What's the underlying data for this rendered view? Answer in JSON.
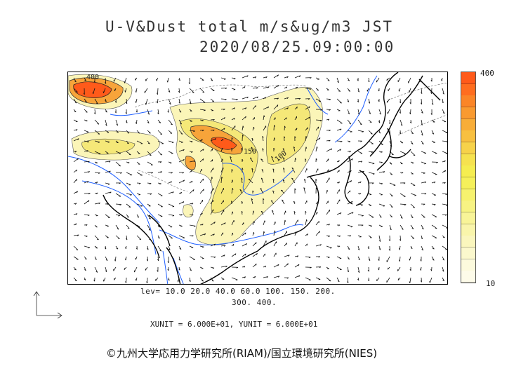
{
  "title": {
    "line1": "U-V&Dust total m/s&ug/m3 JST",
    "line2": "2020/08/25.09:00:00"
  },
  "map": {
    "contour_labels": [
      "400",
      "150",
      "100"
    ],
    "colors": {
      "high": "#ff5a1a",
      "orange": "#f7a43a",
      "yellow": "#f5ea3c",
      "pale": "#fbf5b8",
      "coast": "#000000",
      "river": "#1f5fff"
    }
  },
  "colorbar": {
    "max_label": "400",
    "min_label": "10",
    "stops": [
      "#ff5a1a",
      "#ff6d1f",
      "#fb8527",
      "#f99a30",
      "#f8ad38",
      "#f8c040",
      "#f7d24a",
      "#f6e24f",
      "#f5ed50",
      "#f5f05a",
      "#f6f26e",
      "#f7f383",
      "#f8f498",
      "#f9f5ab",
      "#faf6bd",
      "#fbf8cd",
      "#fcfadd",
      "#fdfbe9"
    ]
  },
  "legend": {
    "levels_line1": "lev= 10.0 20.0 40.0 60.0 100. 150. 200.",
    "levels_line2": "300. 400.",
    "units": "XUNIT = 6.000E+01, YUNIT = 6.000E+01"
  },
  "footer": {
    "copyright": "©九州大学応用力学研究所(RIAM)/国立環境研究所(NIES)"
  }
}
